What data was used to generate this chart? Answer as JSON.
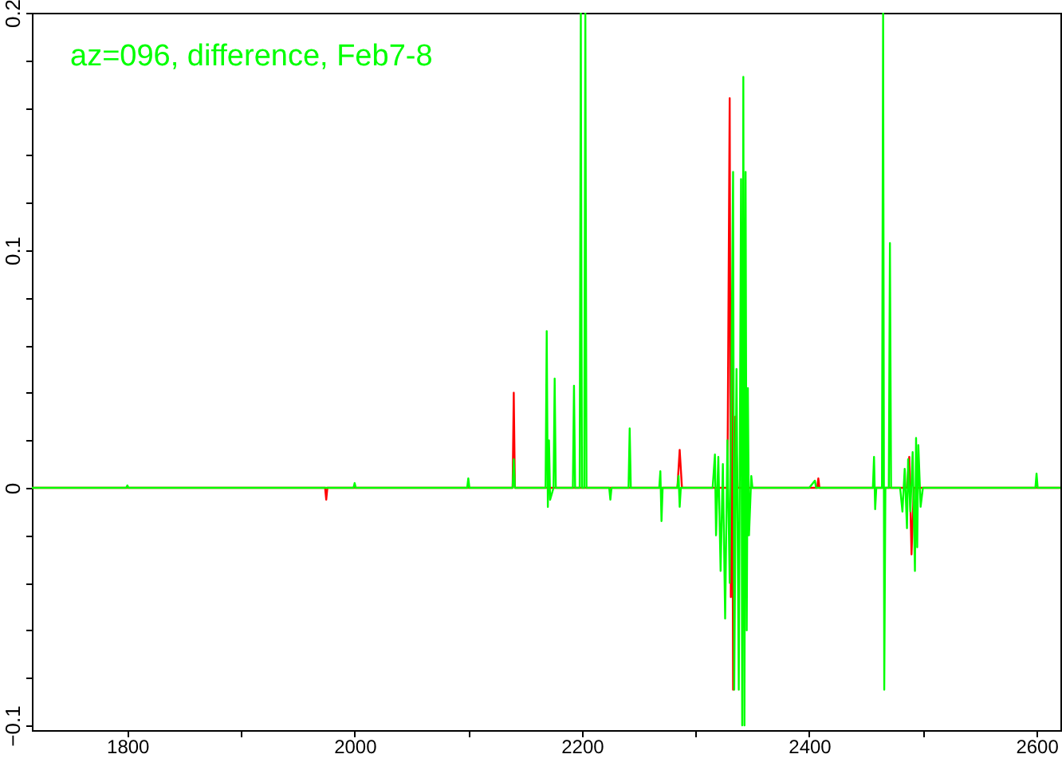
{
  "chart_data": {
    "type": "line",
    "annotations": [
      "az=096, difference, Feb7-8"
    ],
    "xlim": [
      1716,
      2621
    ],
    "ylim": [
      -0.102,
      0.2
    ],
    "xticks": [
      1800,
      {
        "value": 1900,
        "label": null
      },
      2000,
      {
        "value": 2100,
        "label": null
      },
      2200,
      {
        "value": 2300,
        "label": null
      },
      2400,
      {
        "value": 2500,
        "label": null
      },
      2600
    ],
    "yticks": [
      {
        "value": -0.1,
        "label": "−0.1"
      },
      {
        "value": -0.08,
        "label": null
      },
      {
        "value": -0.06,
        "label": null
      },
      {
        "value": -0.04,
        "label": null
      },
      {
        "value": -0.02,
        "label": null
      },
      0,
      {
        "value": 0.02,
        "label": null
      },
      {
        "value": 0.04,
        "label": null
      },
      {
        "value": 0.06,
        "label": null
      },
      {
        "value": 0.08,
        "label": null
      },
      0.1,
      {
        "value": 0.12,
        "label": null
      },
      {
        "value": 0.14,
        "label": null
      },
      {
        "value": 0.16,
        "label": null
      },
      {
        "value": 0.18,
        "label": null
      },
      0.2
    ],
    "grid": false,
    "series": [
      {
        "color": "#ff0000",
        "x": [
          1716,
          1974,
          1975,
          1976,
          2139,
          2140,
          2141,
          2284,
          2286,
          2288,
          2328,
          2330,
          2331,
          2332,
          2333,
          2335,
          2337,
          2407,
          2408,
          2409,
          2486,
          2488,
          2490,
          2492,
          2621
        ],
        "values": [
          0,
          0,
          -0.005,
          0,
          0,
          0.04,
          0,
          0,
          0.016,
          0,
          0,
          0.164,
          -0.046,
          0.08,
          -0.085,
          0.03,
          0,
          0,
          0.004,
          0,
          0,
          0.013,
          -0.028,
          0,
          0
        ]
      },
      {
        "color": "#00ff00",
        "x": [
          1716,
          1799,
          1800,
          1801,
          1999,
          2000,
          2001,
          2099,
          2100,
          2101,
          2139,
          2140,
          2141,
          2168,
          2169,
          2170,
          2171,
          2172,
          2175,
          2176,
          2177,
          2192,
          2193,
          2194,
          2198,
          2199,
          2200,
          2202,
          2203,
          2204,
          2224,
          2225,
          2226,
          2241,
          2242,
          2243,
          2268,
          2269,
          2270,
          2271,
          2284,
          2285,
          2286,
          2287,
          2315,
          2317,
          2318,
          2320,
          2322,
          2324,
          2326,
          2328,
          2330,
          2333,
          2334,
          2336,
          2338,
          2340,
          2341,
          2342,
          2343,
          2344,
          2345,
          2346,
          2347,
          2349,
          2350,
          2400,
          2405,
          2406,
          2456,
          2457,
          2458,
          2459,
          2464,
          2465,
          2466,
          2467,
          2470,
          2471,
          2472,
          2480,
          2482,
          2484,
          2486,
          2487,
          2489,
          2491,
          2493,
          2494,
          2495,
          2496,
          2498,
          2500,
          2560,
          2599,
          2600,
          2601,
          2621
        ],
        "values": [
          0,
          0,
          0.001,
          0,
          0,
          0.002,
          0,
          0,
          0.004,
          0,
          0,
          0.012,
          0,
          0,
          0.066,
          -0.008,
          0.02,
          -0.005,
          0,
          0.046,
          0,
          0,
          0.043,
          0,
          0,
          0.2,
          0,
          0,
          0.2,
          0,
          0,
          -0.005,
          0,
          0,
          0.025,
          0,
          0,
          0.007,
          -0.014,
          0,
          0,
          0.005,
          -0.008,
          0,
          0,
          0.014,
          -0.02,
          0.013,
          -0.035,
          0.01,
          -0.055,
          0.02,
          -0.04,
          0.133,
          -0.085,
          0.05,
          -0.085,
          0.13,
          -0.1,
          0.173,
          -0.1,
          0.133,
          -0.06,
          0.042,
          -0.02,
          0.005,
          0,
          0,
          0.003,
          0,
          0,
          0.013,
          -0.009,
          0,
          0,
          0.2,
          -0.085,
          0,
          0,
          0.103,
          0,
          0,
          -0.01,
          0.008,
          -0.017,
          0.012,
          -0.01,
          0.015,
          -0.035,
          0.021,
          -0.025,
          0.018,
          -0.008,
          0,
          0,
          0,
          0.006,
          0,
          0
        ]
      }
    ]
  }
}
